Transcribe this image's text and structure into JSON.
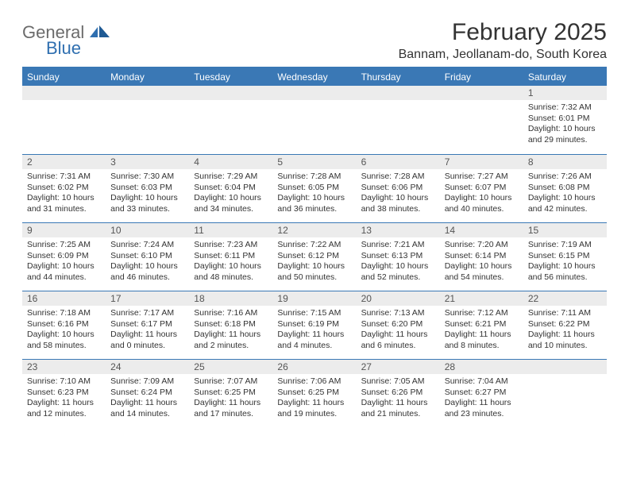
{
  "brand": {
    "part1": "General",
    "part2": "Blue"
  },
  "title": "February 2025",
  "location": "Bannam, Jeollanam-do, South Korea",
  "colors": {
    "header_bar": "#3a78b5",
    "daynum_band": "#ececec",
    "text": "#333333",
    "logo_gray": "#6b6b6b",
    "logo_blue": "#2f6fb0",
    "background": "#ffffff"
  },
  "weekdays": [
    "Sunday",
    "Monday",
    "Tuesday",
    "Wednesday",
    "Thursday",
    "Friday",
    "Saturday"
  ],
  "grid": {
    "start_weekday_index": 6,
    "rows": 5,
    "cols": 7
  },
  "days": [
    {
      "n": 1,
      "sunrise": "7:32 AM",
      "sunset": "6:01 PM",
      "daylight": "10 hours and 29 minutes."
    },
    {
      "n": 2,
      "sunrise": "7:31 AM",
      "sunset": "6:02 PM",
      "daylight": "10 hours and 31 minutes."
    },
    {
      "n": 3,
      "sunrise": "7:30 AM",
      "sunset": "6:03 PM",
      "daylight": "10 hours and 33 minutes."
    },
    {
      "n": 4,
      "sunrise": "7:29 AM",
      "sunset": "6:04 PM",
      "daylight": "10 hours and 34 minutes."
    },
    {
      "n": 5,
      "sunrise": "7:28 AM",
      "sunset": "6:05 PM",
      "daylight": "10 hours and 36 minutes."
    },
    {
      "n": 6,
      "sunrise": "7:28 AM",
      "sunset": "6:06 PM",
      "daylight": "10 hours and 38 minutes."
    },
    {
      "n": 7,
      "sunrise": "7:27 AM",
      "sunset": "6:07 PM",
      "daylight": "10 hours and 40 minutes."
    },
    {
      "n": 8,
      "sunrise": "7:26 AM",
      "sunset": "6:08 PM",
      "daylight": "10 hours and 42 minutes."
    },
    {
      "n": 9,
      "sunrise": "7:25 AM",
      "sunset": "6:09 PM",
      "daylight": "10 hours and 44 minutes."
    },
    {
      "n": 10,
      "sunrise": "7:24 AM",
      "sunset": "6:10 PM",
      "daylight": "10 hours and 46 minutes."
    },
    {
      "n": 11,
      "sunrise": "7:23 AM",
      "sunset": "6:11 PM",
      "daylight": "10 hours and 48 minutes."
    },
    {
      "n": 12,
      "sunrise": "7:22 AM",
      "sunset": "6:12 PM",
      "daylight": "10 hours and 50 minutes."
    },
    {
      "n": 13,
      "sunrise": "7:21 AM",
      "sunset": "6:13 PM",
      "daylight": "10 hours and 52 minutes."
    },
    {
      "n": 14,
      "sunrise": "7:20 AM",
      "sunset": "6:14 PM",
      "daylight": "10 hours and 54 minutes."
    },
    {
      "n": 15,
      "sunrise": "7:19 AM",
      "sunset": "6:15 PM",
      "daylight": "10 hours and 56 minutes."
    },
    {
      "n": 16,
      "sunrise": "7:18 AM",
      "sunset": "6:16 PM",
      "daylight": "10 hours and 58 minutes."
    },
    {
      "n": 17,
      "sunrise": "7:17 AM",
      "sunset": "6:17 PM",
      "daylight": "11 hours and 0 minutes."
    },
    {
      "n": 18,
      "sunrise": "7:16 AM",
      "sunset": "6:18 PM",
      "daylight": "11 hours and 2 minutes."
    },
    {
      "n": 19,
      "sunrise": "7:15 AM",
      "sunset": "6:19 PM",
      "daylight": "11 hours and 4 minutes."
    },
    {
      "n": 20,
      "sunrise": "7:13 AM",
      "sunset": "6:20 PM",
      "daylight": "11 hours and 6 minutes."
    },
    {
      "n": 21,
      "sunrise": "7:12 AM",
      "sunset": "6:21 PM",
      "daylight": "11 hours and 8 minutes."
    },
    {
      "n": 22,
      "sunrise": "7:11 AM",
      "sunset": "6:22 PM",
      "daylight": "11 hours and 10 minutes."
    },
    {
      "n": 23,
      "sunrise": "7:10 AM",
      "sunset": "6:23 PM",
      "daylight": "11 hours and 12 minutes."
    },
    {
      "n": 24,
      "sunrise": "7:09 AM",
      "sunset": "6:24 PM",
      "daylight": "11 hours and 14 minutes."
    },
    {
      "n": 25,
      "sunrise": "7:07 AM",
      "sunset": "6:25 PM",
      "daylight": "11 hours and 17 minutes."
    },
    {
      "n": 26,
      "sunrise": "7:06 AM",
      "sunset": "6:25 PM",
      "daylight": "11 hours and 19 minutes."
    },
    {
      "n": 27,
      "sunrise": "7:05 AM",
      "sunset": "6:26 PM",
      "daylight": "11 hours and 21 minutes."
    },
    {
      "n": 28,
      "sunrise": "7:04 AM",
      "sunset": "6:27 PM",
      "daylight": "11 hours and 23 minutes."
    }
  ],
  "labels": {
    "sunrise": "Sunrise:",
    "sunset": "Sunset:",
    "daylight": "Daylight:"
  }
}
